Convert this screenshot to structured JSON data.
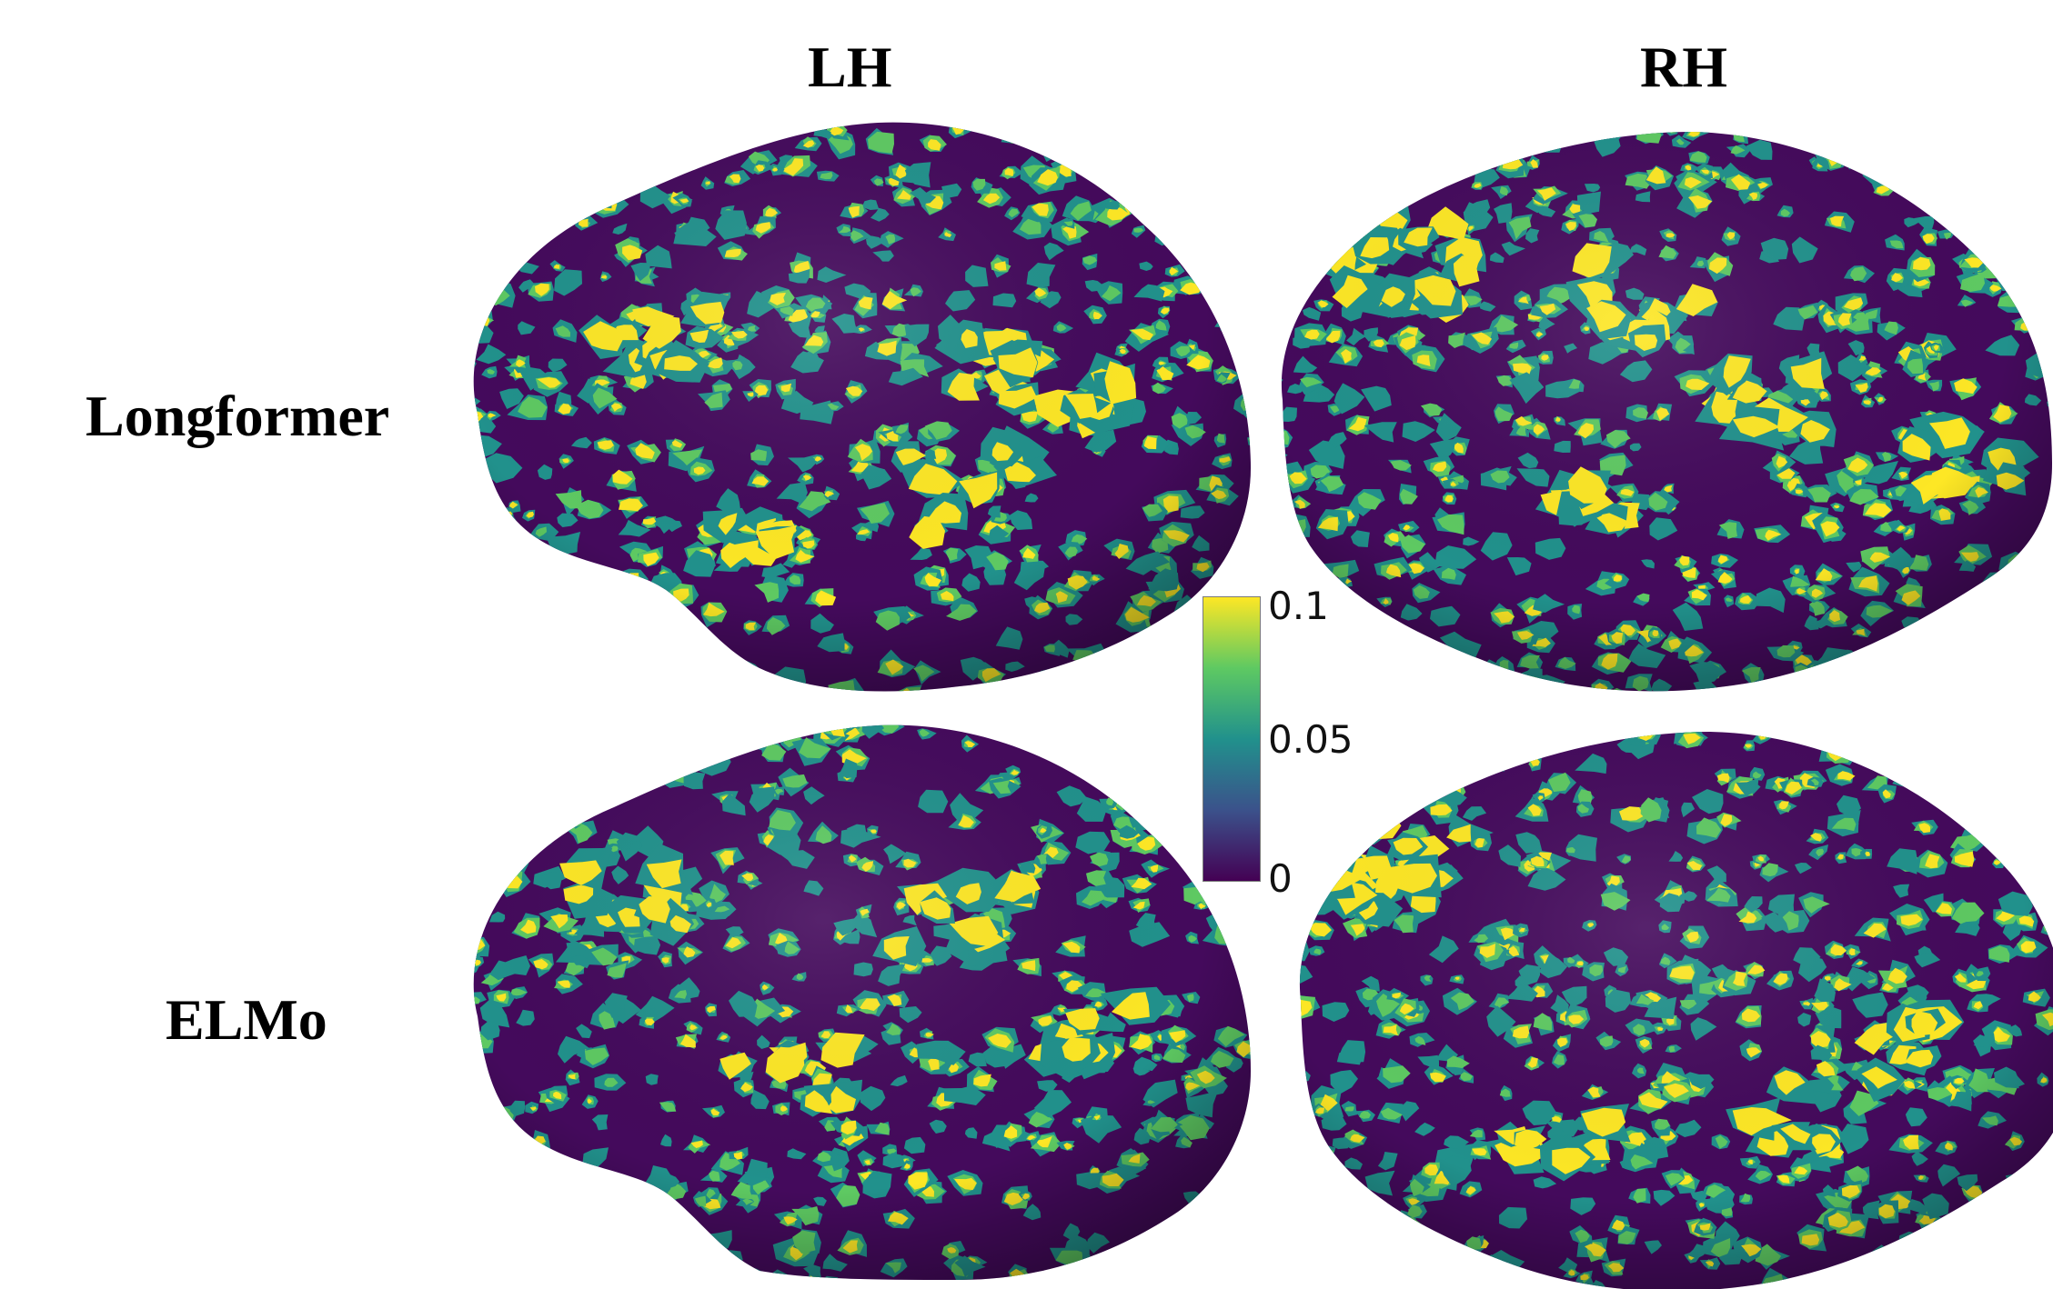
{
  "columns": {
    "left": "LH",
    "right": "RH"
  },
  "rows": {
    "top": "Longformer",
    "bottom": "ELMo"
  },
  "colorbar": {
    "max_label": "0.1",
    "mid_label": "0.05",
    "min_label": "0",
    "range": [
      0,
      0.1
    ],
    "colormap": [
      "#440154",
      "#3b528b",
      "#21918c",
      "#5ec962",
      "#fde725"
    ]
  },
  "colors": {
    "surface": "#440a5c",
    "low_activation": "#21918c",
    "mid_activation": "#5ec962",
    "high_activation": "#fde725"
  }
}
